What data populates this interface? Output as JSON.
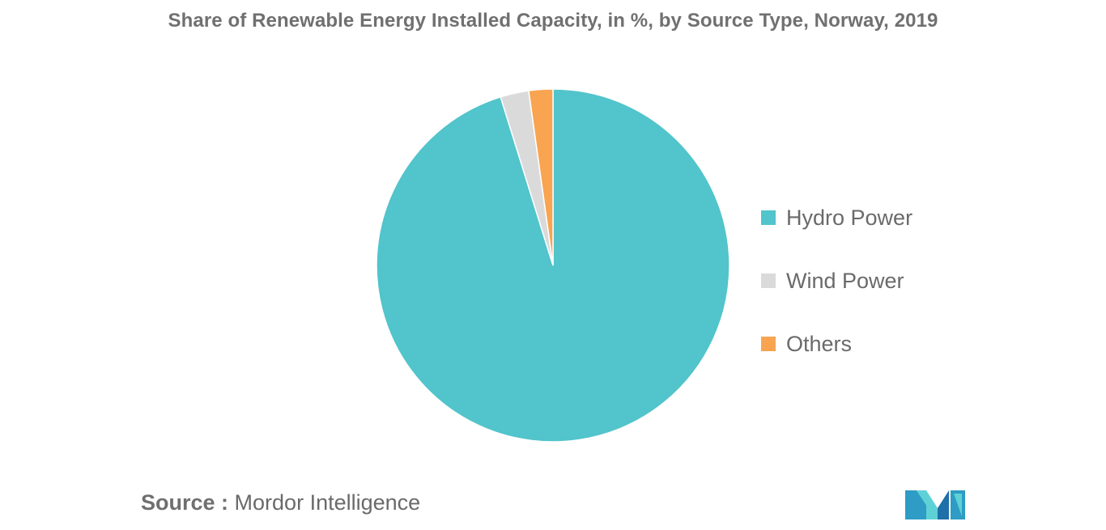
{
  "title": "Share of Renewable Energy Installed Capacity, in %, by Source Type, Norway, 2019",
  "chart_data": {
    "type": "pie",
    "title": "Share of Renewable Energy Installed Capacity, in %, by Source Type, Norway, 2019",
    "categories": [
      "Hydro Power",
      "Wind Power",
      "Others"
    ],
    "values": [
      95.2,
      2.6,
      2.2
    ],
    "colors": [
      "#52C4CB",
      "#DADADA",
      "#F8A451"
    ],
    "legend_position": "right"
  },
  "source": {
    "prefix": "Source :",
    "text": "Mordor Intelligence"
  },
  "logo": {
    "icon": "mordor-intelligence-logo",
    "colors": [
      "#2E9CC5",
      "#5ED1D6",
      "#1F6FA8"
    ]
  }
}
